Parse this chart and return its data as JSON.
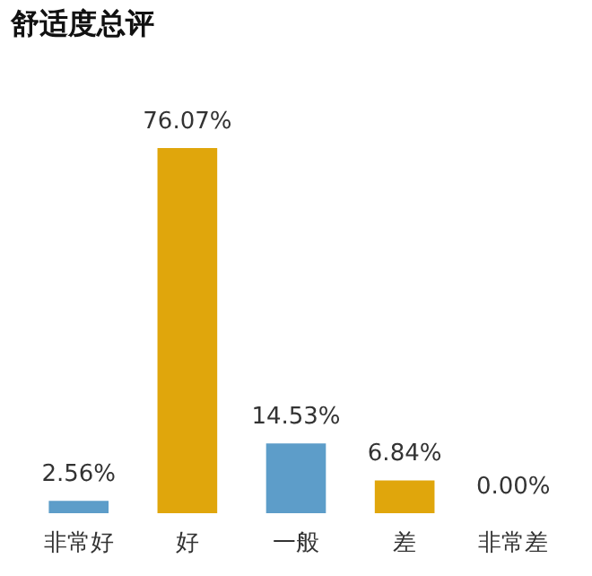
{
  "chart_data": {
    "type": "bar",
    "title": "舒适度总评",
    "categories": [
      "非常好",
      "好",
      "一般",
      "差",
      "非常差"
    ],
    "values": [
      2.56,
      76.07,
      14.53,
      6.84,
      0.0
    ],
    "colors": [
      "#5d9dc9",
      "#e0a60c",
      "#5d9dc9",
      "#e0a60c",
      "#5d9dc9"
    ],
    "value_labels": [
      "2.56%",
      "76.07%",
      "14.53%",
      "6.84%",
      "0.00%"
    ],
    "grid": false
  }
}
